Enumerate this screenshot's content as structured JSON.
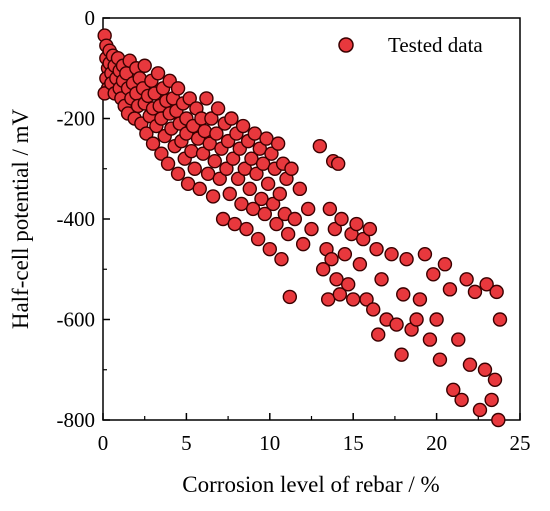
{
  "chart_data": {
    "type": "scatter",
    "xlabel": "Corrosion level of rebar / %",
    "ylabel": "Half-cell potential / mV",
    "xlim": [
      0,
      25
    ],
    "ylim": [
      -800,
      0
    ],
    "xticks": [
      0,
      5,
      10,
      15,
      20,
      25
    ],
    "yticks": [
      0,
      -200,
      -400,
      -600,
      -800
    ],
    "grid": false,
    "legend_position": "top-right",
    "series": [
      {
        "name": "Tested data",
        "color": "#e8383d",
        "edgecolor": "#3a0000",
        "points": [
          [
            0.1,
            -35
          ],
          [
            0.2,
            -55
          ],
          [
            0.2,
            -80
          ],
          [
            0.3,
            -100
          ],
          [
            0.2,
            -120
          ],
          [
            0.3,
            -140
          ],
          [
            0.1,
            -150
          ],
          [
            0.4,
            -65
          ],
          [
            0.4,
            -90
          ],
          [
            0.5,
            -110
          ],
          [
            0.6,
            -75
          ],
          [
            0.5,
            -130
          ],
          [
            0.7,
            -95
          ],
          [
            0.7,
            -150
          ],
          [
            0.8,
            -120
          ],
          [
            0.9,
            -80
          ],
          [
            1.0,
            -105
          ],
          [
            1.0,
            -140
          ],
          [
            1.1,
            -160
          ],
          [
            1.2,
            -95
          ],
          [
            1.2,
            -125
          ],
          [
            1.3,
            -175
          ],
          [
            1.4,
            -110
          ],
          [
            1.5,
            -140
          ],
          [
            1.5,
            -190
          ],
          [
            1.6,
            -85
          ],
          [
            1.7,
            -160
          ],
          [
            1.8,
            -130
          ],
          [
            1.9,
            -200
          ],
          [
            2.0,
            -100
          ],
          [
            2.0,
            -150
          ],
          [
            2.1,
            -175
          ],
          [
            2.2,
            -120
          ],
          [
            2.3,
            -210
          ],
          [
            2.4,
            -140
          ],
          [
            2.5,
            -95
          ],
          [
            2.5,
            -170
          ],
          [
            2.6,
            -230
          ],
          [
            2.7,
            -155
          ],
          [
            2.8,
            -195
          ],
          [
            2.9,
            -125
          ],
          [
            3.0,
            -250
          ],
          [
            3.0,
            -180
          ],
          [
            3.1,
            -150
          ],
          [
            3.2,
            -215
          ],
          [
            3.3,
            -110
          ],
          [
            3.4,
            -175
          ],
          [
            3.5,
            -270
          ],
          [
            3.5,
            -200
          ],
          [
            3.6,
            -140
          ],
          [
            3.7,
            -235
          ],
          [
            3.8,
            -165
          ],
          [
            3.9,
            -290
          ],
          [
            4.0,
            -190
          ],
          [
            4.0,
            -125
          ],
          [
            4.1,
            -220
          ],
          [
            4.2,
            -160
          ],
          [
            4.3,
            -255
          ],
          [
            4.4,
            -185
          ],
          [
            4.5,
            -310
          ],
          [
            4.5,
            -140
          ],
          [
            4.6,
            -210
          ],
          [
            4.7,
            -245
          ],
          [
            4.8,
            -170
          ],
          [
            4.9,
            -280
          ],
          [
            5.0,
            -200
          ],
          [
            5.0,
            -230
          ],
          [
            5.1,
            -330
          ],
          [
            5.2,
            -160
          ],
          [
            5.3,
            -265
          ],
          [
            5.4,
            -215
          ],
          [
            5.5,
            -300
          ],
          [
            5.6,
            -180
          ],
          [
            5.7,
            -240
          ],
          [
            5.8,
            -340
          ],
          [
            5.9,
            -200
          ],
          [
            6.0,
            -270
          ],
          [
            6.1,
            -225
          ],
          [
            6.2,
            -160
          ],
          [
            6.3,
            -310
          ],
          [
            6.4,
            -250
          ],
          [
            6.5,
            -200
          ],
          [
            6.6,
            -355
          ],
          [
            6.7,
            -285
          ],
          [
            6.8,
            -230
          ],
          [
            6.9,
            -180
          ],
          [
            7.0,
            -320
          ],
          [
            7.1,
            -260
          ],
          [
            7.2,
            -400
          ],
          [
            7.3,
            -210
          ],
          [
            7.4,
            -300
          ],
          [
            7.5,
            -245
          ],
          [
            7.6,
            -350
          ],
          [
            7.7,
            -200
          ],
          [
            7.8,
            -280
          ],
          [
            7.9,
            -410
          ],
          [
            8.0,
            -230
          ],
          [
            8.1,
            -320
          ],
          [
            8.2,
            -260
          ],
          [
            8.3,
            -370
          ],
          [
            8.4,
            -215
          ],
          [
            8.5,
            -300
          ],
          [
            8.6,
            -420
          ],
          [
            8.7,
            -245
          ],
          [
            8.8,
            -340
          ],
          [
            8.9,
            -280
          ],
          [
            9.0,
            -380
          ],
          [
            9.1,
            -230
          ],
          [
            9.2,
            -310
          ],
          [
            9.3,
            -440
          ],
          [
            9.4,
            -260
          ],
          [
            9.5,
            -360
          ],
          [
            9.6,
            -290
          ],
          [
            9.7,
            -390
          ],
          [
            9.8,
            -240
          ],
          [
            9.9,
            -330
          ],
          [
            10.0,
            -460
          ],
          [
            10.1,
            -270
          ],
          [
            10.2,
            -370
          ],
          [
            10.3,
            -300
          ],
          [
            10.4,
            -410
          ],
          [
            10.5,
            -250
          ],
          [
            10.6,
            -350
          ],
          [
            10.7,
            -480
          ],
          [
            10.8,
            -290
          ],
          [
            10.9,
            -390
          ],
          [
            11.0,
            -320
          ],
          [
            11.1,
            -430
          ],
          [
            11.2,
            -555
          ],
          [
            11.3,
            -300
          ],
          [
            11.5,
            -400
          ],
          [
            11.8,
            -340
          ],
          [
            12.0,
            -450
          ],
          [
            12.3,
            -380
          ],
          [
            12.5,
            -420
          ],
          [
            13.0,
            -255
          ],
          [
            13.2,
            -500
          ],
          [
            13.4,
            -460
          ],
          [
            13.5,
            -560
          ],
          [
            13.6,
            -380
          ],
          [
            13.7,
            -480
          ],
          [
            13.8,
            -285
          ],
          [
            13.9,
            -420
          ],
          [
            14.0,
            -520
          ],
          [
            14.1,
            -290
          ],
          [
            14.2,
            -550
          ],
          [
            14.3,
            -400
          ],
          [
            14.5,
            -470
          ],
          [
            14.7,
            -530
          ],
          [
            14.9,
            -430
          ],
          [
            15.0,
            -560
          ],
          [
            15.2,
            -410
          ],
          [
            15.4,
            -490
          ],
          [
            15.6,
            -440
          ],
          [
            15.8,
            -560
          ],
          [
            16.0,
            -420
          ],
          [
            16.2,
            -580
          ],
          [
            16.4,
            -460
          ],
          [
            16.5,
            -630
          ],
          [
            16.7,
            -520
          ],
          [
            17.0,
            -600
          ],
          [
            17.3,
            -470
          ],
          [
            17.6,
            -610
          ],
          [
            17.9,
            -670
          ],
          [
            18.0,
            -550
          ],
          [
            18.2,
            -480
          ],
          [
            18.5,
            -620
          ],
          [
            18.8,
            -600
          ],
          [
            19.0,
            -560
          ],
          [
            19.3,
            -470
          ],
          [
            19.6,
            -640
          ],
          [
            19.8,
            -510
          ],
          [
            20.0,
            -600
          ],
          [
            20.2,
            -680
          ],
          [
            20.5,
            -490
          ],
          [
            20.8,
            -540
          ],
          [
            21.0,
            -740
          ],
          [
            21.3,
            -640
          ],
          [
            21.5,
            -760
          ],
          [
            21.8,
            -520
          ],
          [
            22.0,
            -690
          ],
          [
            22.3,
            -545
          ],
          [
            22.6,
            -780
          ],
          [
            22.9,
            -700
          ],
          [
            23.0,
            -530
          ],
          [
            23.3,
            -760
          ],
          [
            23.5,
            -720
          ],
          [
            23.6,
            -545
          ],
          [
            23.8,
            -600
          ],
          [
            23.7,
            -800
          ]
        ]
      }
    ]
  }
}
